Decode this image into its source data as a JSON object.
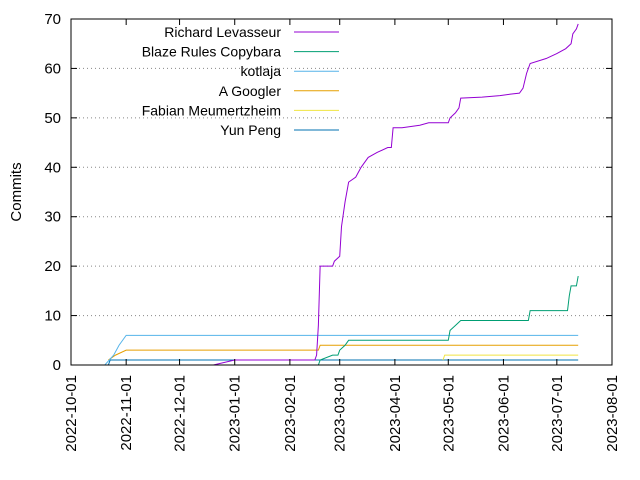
{
  "chart_data": {
    "type": "line",
    "title": "",
    "xlabel": "",
    "ylabel": "Commits",
    "xlim": [
      "2022-10-01",
      "2023-08-01"
    ],
    "ylim": [
      0,
      70
    ],
    "y_ticks": [
      0,
      10,
      20,
      30,
      40,
      50,
      60,
      70
    ],
    "x_ticks": [
      "2022-10-01",
      "2022-11-01",
      "2022-12-01",
      "2023-01-01",
      "2023-02-01",
      "2023-03-01",
      "2023-04-01",
      "2023-05-01",
      "2023-06-01",
      "2023-07-01",
      "2023-08-01"
    ],
    "grid": "horizontal dotted",
    "legend_position": "top-left",
    "series": [
      {
        "name": "Richard Levasseur",
        "color": "#9400d3",
        "points": [
          [
            "2022-11-01",
            0
          ],
          [
            "2022-12-01",
            0
          ],
          [
            "2022-12-20",
            0
          ],
          [
            "2023-01-01",
            1
          ],
          [
            "2023-02-01",
            1
          ],
          [
            "2023-02-15",
            1
          ],
          [
            "2023-02-16",
            2
          ],
          [
            "2023-02-17",
            8
          ],
          [
            "2023-02-18",
            20
          ],
          [
            "2023-02-25",
            20
          ],
          [
            "2023-02-26",
            21
          ],
          [
            "2023-03-01",
            22
          ],
          [
            "2023-03-02",
            28
          ],
          [
            "2023-03-04",
            33
          ],
          [
            "2023-03-06",
            37
          ],
          [
            "2023-03-10",
            38
          ],
          [
            "2023-03-13",
            40
          ],
          [
            "2023-03-17",
            42
          ],
          [
            "2023-03-22",
            43
          ],
          [
            "2023-03-28",
            44
          ],
          [
            "2023-03-30",
            44
          ],
          [
            "2023-03-31",
            48
          ],
          [
            "2023-04-05",
            48
          ],
          [
            "2023-04-15",
            48.5
          ],
          [
            "2023-04-20",
            49
          ],
          [
            "2023-05-01",
            49
          ],
          [
            "2023-05-02",
            50
          ],
          [
            "2023-05-05",
            51
          ],
          [
            "2023-05-07",
            52
          ],
          [
            "2023-05-08",
            54
          ],
          [
            "2023-05-20",
            54.2
          ],
          [
            "2023-05-30",
            54.5
          ],
          [
            "2023-06-05",
            54.8
          ],
          [
            "2023-06-10",
            55
          ],
          [
            "2023-06-12",
            56
          ],
          [
            "2023-06-14",
            59
          ],
          [
            "2023-06-16",
            61
          ],
          [
            "2023-06-25",
            62
          ],
          [
            "2023-07-01",
            63
          ],
          [
            "2023-07-06",
            64
          ],
          [
            "2023-07-09",
            65
          ],
          [
            "2023-07-10",
            67
          ],
          [
            "2023-07-12",
            68
          ],
          [
            "2023-07-13",
            69
          ]
        ]
      },
      {
        "name": "Blaze Rules Copybara",
        "color": "#009e73",
        "points": [
          [
            "2022-10-22",
            0
          ],
          [
            "2023-02-17",
            0
          ],
          [
            "2023-02-18",
            1
          ],
          [
            "2023-02-25",
            2
          ],
          [
            "2023-02-28",
            2
          ],
          [
            "2023-03-01",
            3
          ],
          [
            "2023-03-04",
            4
          ],
          [
            "2023-03-06",
            5
          ],
          [
            "2023-05-01",
            5
          ],
          [
            "2023-05-02",
            7
          ],
          [
            "2023-05-05",
            8
          ],
          [
            "2023-05-08",
            9
          ],
          [
            "2023-06-15",
            9
          ],
          [
            "2023-06-16",
            11
          ],
          [
            "2023-07-07",
            11
          ],
          [
            "2023-07-08",
            14
          ],
          [
            "2023-07-09",
            16
          ],
          [
            "2023-07-12",
            16
          ],
          [
            "2023-07-13",
            18
          ]
        ]
      },
      {
        "name": "kotlaja",
        "color": "#56b4e9",
        "points": [
          [
            "2022-10-20",
            0
          ],
          [
            "2022-10-25",
            2
          ],
          [
            "2022-10-28",
            4
          ],
          [
            "2022-11-01",
            6
          ],
          [
            "2023-07-13",
            6
          ]
        ]
      },
      {
        "name": "A Googler",
        "color": "#e69f00",
        "points": [
          [
            "2022-10-22",
            1
          ],
          [
            "2022-10-26",
            2
          ],
          [
            "2022-11-01",
            3
          ],
          [
            "2023-02-17",
            3
          ],
          [
            "2023-02-18",
            4
          ],
          [
            "2023-07-13",
            4
          ]
        ]
      },
      {
        "name": "Fabian Meumertzheim",
        "color": "#f0e442",
        "points": [
          [
            "2023-04-28",
            1
          ],
          [
            "2023-04-29",
            2
          ],
          [
            "2023-07-13",
            2
          ]
        ]
      },
      {
        "name": "Yun Peng",
        "color": "#0072b2",
        "points": [
          [
            "2022-10-22",
            0
          ],
          [
            "2022-10-23",
            1
          ],
          [
            "2023-07-13",
            1
          ]
        ]
      }
    ]
  }
}
